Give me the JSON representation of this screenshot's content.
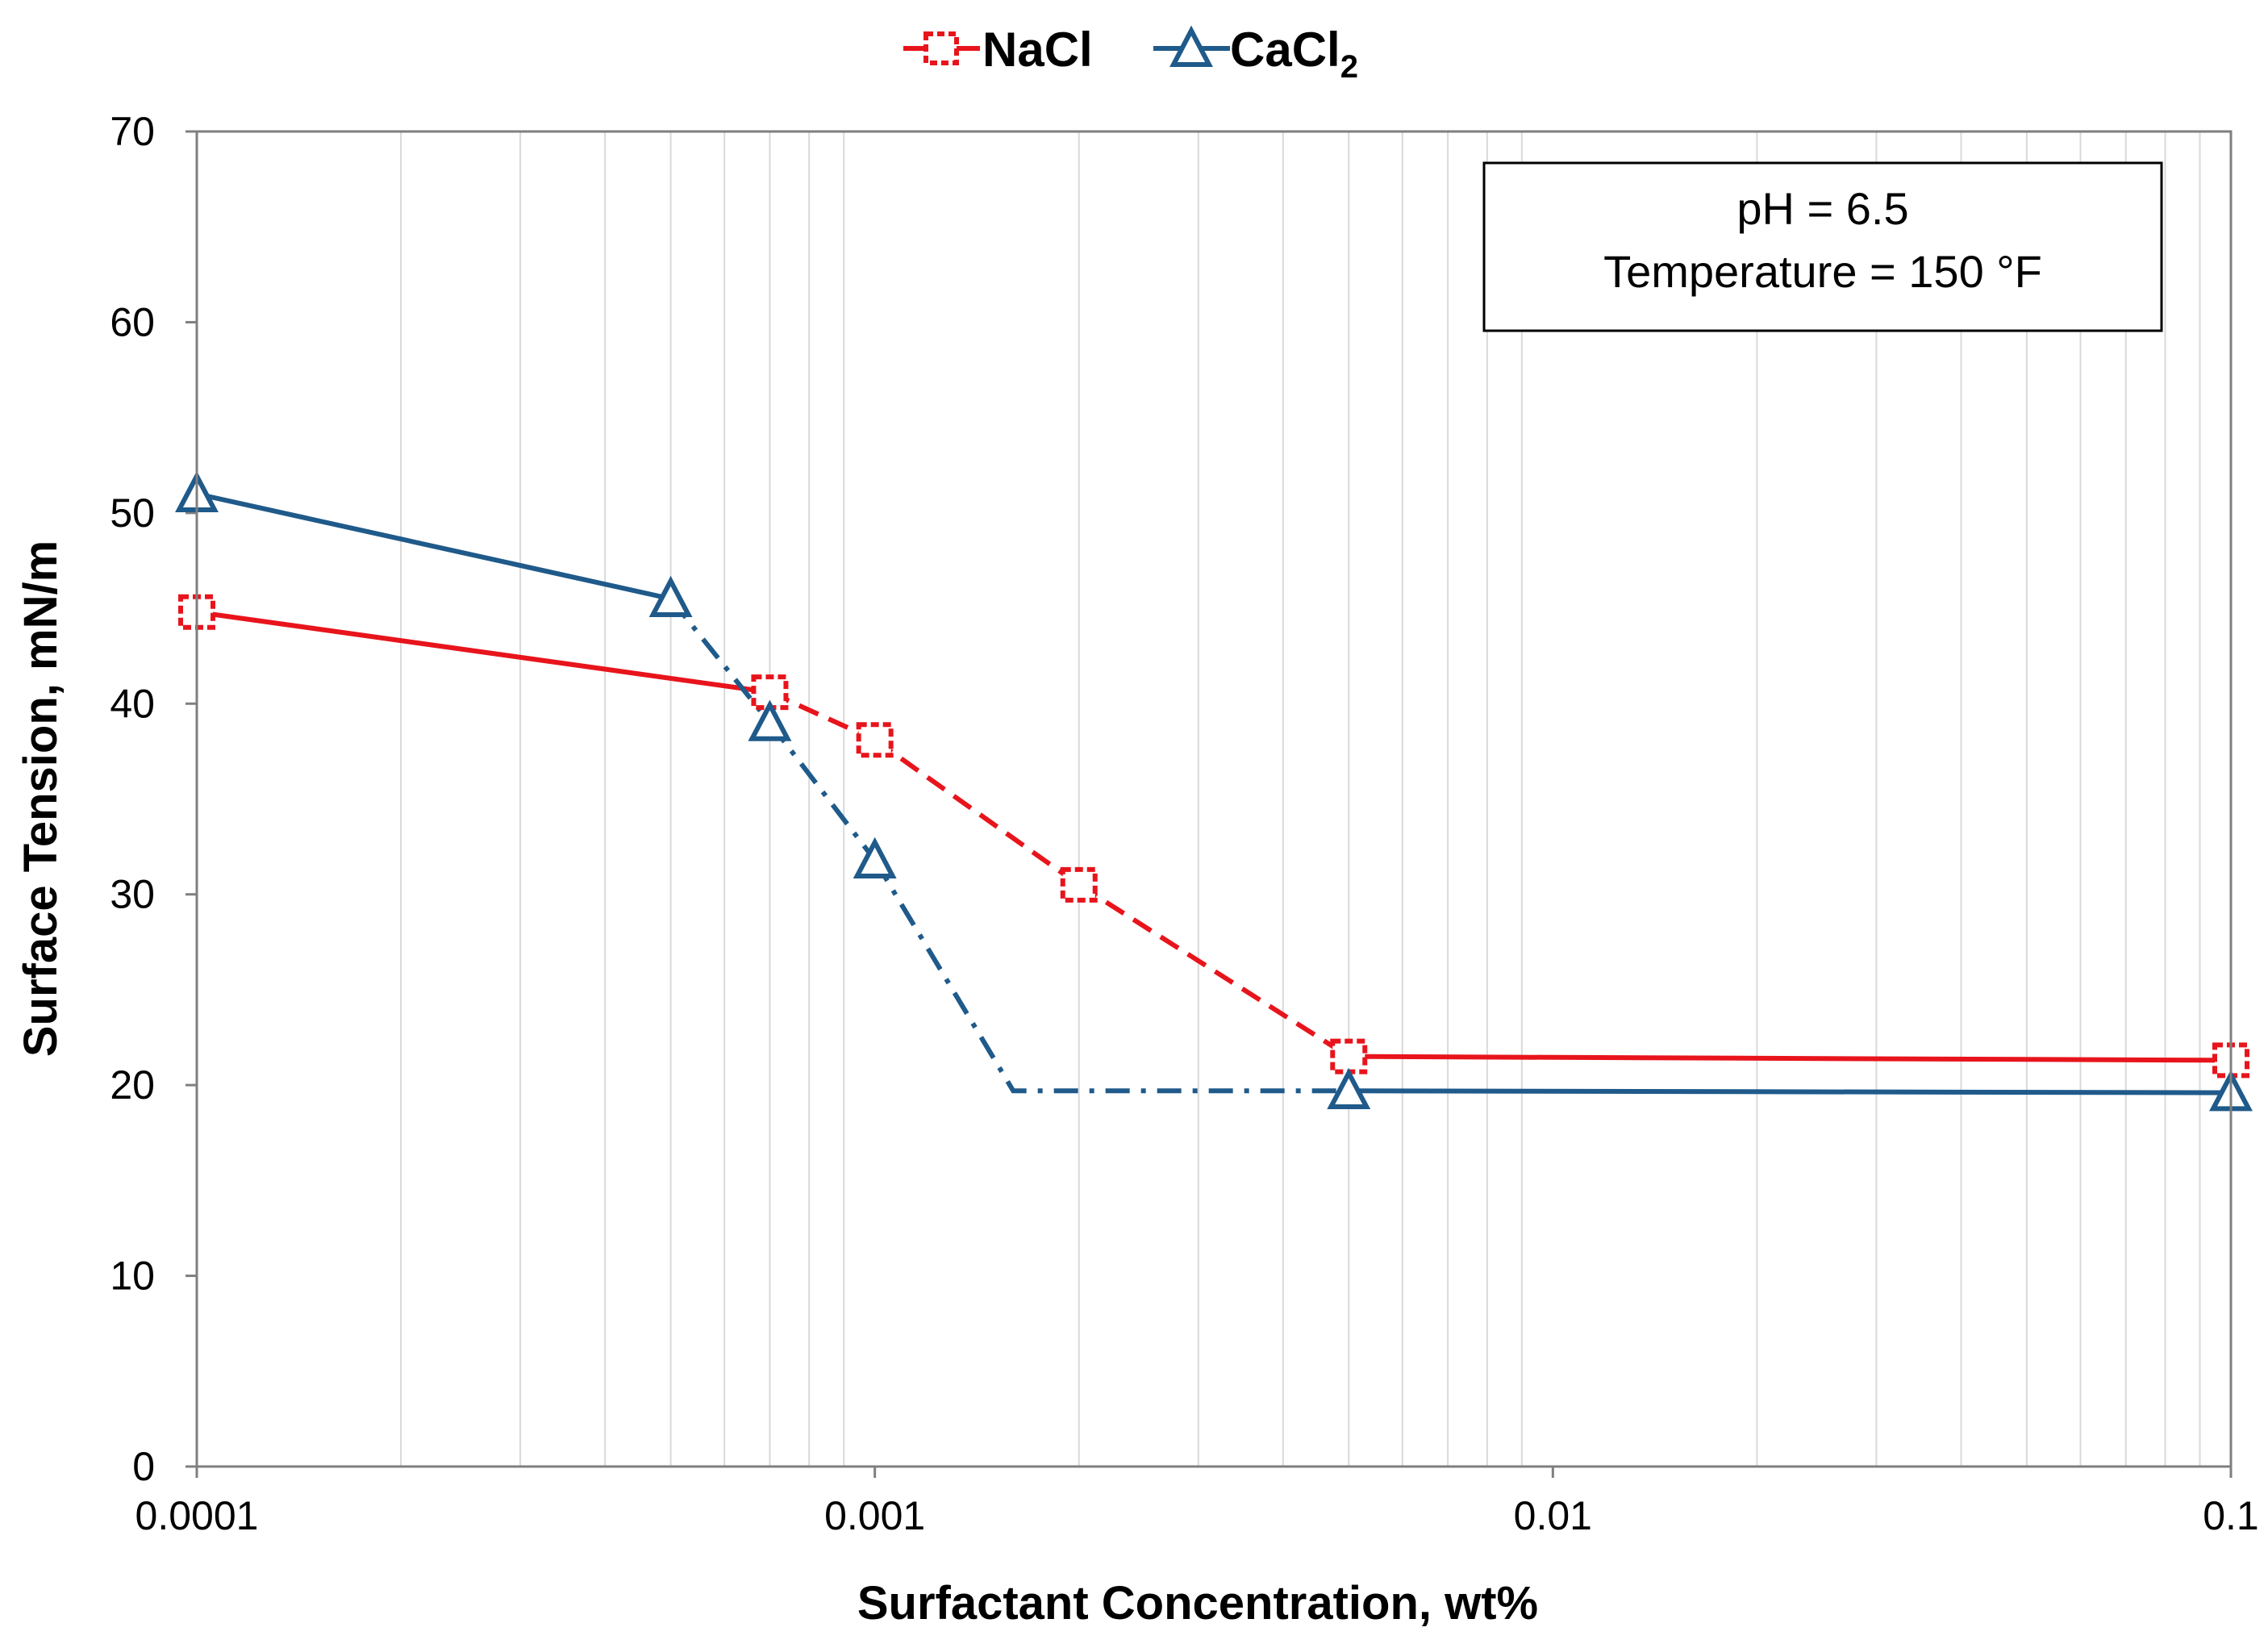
{
  "chart_data": {
    "type": "line",
    "title": "",
    "xlabel": "Surfactant Concentration, wt%",
    "ylabel": "Surface Tension, mN/m",
    "xscale": "log",
    "xlim": [
      0.0001,
      0.1
    ],
    "ylim": [
      0,
      70
    ],
    "xticks": [
      0.0001,
      0.001,
      0.01,
      0.1
    ],
    "xtick_labels": [
      "0.0001",
      "0.001",
      "0.01",
      "0.1"
    ],
    "yticks": [
      0,
      10,
      20,
      30,
      40,
      50,
      60,
      70
    ],
    "ytick_labels": [
      "0",
      "10",
      "20",
      "30",
      "40",
      "50",
      "60",
      "70"
    ],
    "grid": "vertical minor log gridlines",
    "legend_position": "top-center",
    "series": [
      {
        "name": "NaCl",
        "color": "#e8141c",
        "marker": "dashed-square",
        "x": [
          0.0001,
          0.0007,
          0.001,
          0.002,
          0.005,
          0.1
        ],
        "y": [
          44.8,
          40.6,
          38.1,
          30.5,
          21.5,
          21.3
        ],
        "segment_styles": [
          "solid",
          "dashed",
          "dashed",
          "dashed",
          "solid"
        ]
      },
      {
        "name": "CaCl",
        "name_subscript": "2",
        "color": "#1f5a8a",
        "marker": "triangle",
        "x": [
          0.0001,
          0.0005,
          0.0007,
          0.001,
          0.005,
          0.1
        ],
        "y": [
          51.0,
          45.5,
          39.0,
          31.8,
          19.7,
          19.6
        ],
        "segment_styles": [
          "solid",
          "dashdot",
          "dashdot",
          "dashdot",
          "solid"
        ],
        "dashdot_elbow": {
          "x": 0.0016,
          "y": 19.7
        }
      }
    ],
    "annotation": {
      "line1": "pH = 6.5",
      "line2": "Temperature = 150 °F"
    }
  }
}
